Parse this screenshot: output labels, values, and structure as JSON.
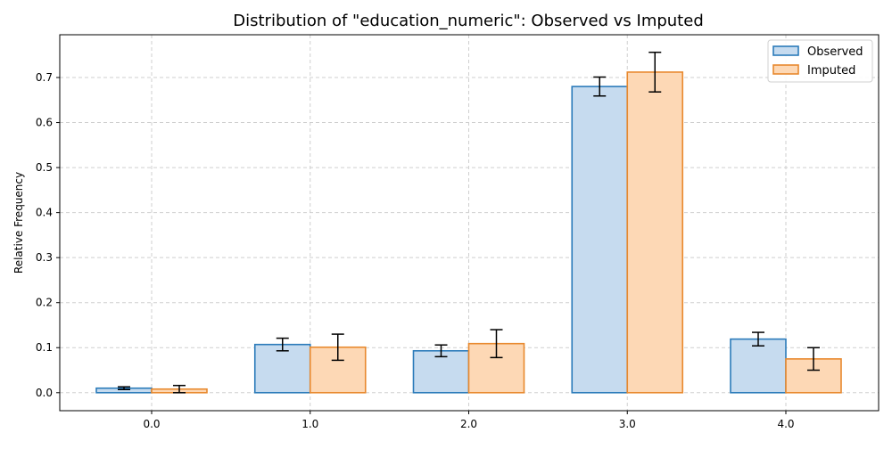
{
  "chart_data": {
    "type": "bar",
    "title": "Distribution of \"education_numeric\": Observed vs Imputed",
    "xlabel": "",
    "ylabel": "Relative Frequency",
    "categories": [
      "0.0",
      "1.0",
      "2.0",
      "3.0",
      "4.0"
    ],
    "series": [
      {
        "name": "Observed",
        "values": [
          0.01,
          0.107,
          0.093,
          0.68,
          0.119
        ],
        "error": [
          0.003,
          0.014,
          0.013,
          0.021,
          0.015
        ],
        "fill": "#c6dbef",
        "stroke": "#2b7bba"
      },
      {
        "name": "Imputed",
        "values": [
          0.008,
          0.101,
          0.109,
          0.712,
          0.075
        ],
        "error": [
          0.008,
          0.029,
          0.031,
          0.044,
          0.025
        ],
        "fill": "#fdd8b5",
        "stroke": "#e8892e"
      }
    ],
    "ylim": [
      -0.04,
      0.795
    ],
    "yticks": [
      "0.0",
      "0.1",
      "0.2",
      "0.3",
      "0.4",
      "0.5",
      "0.6",
      "0.7"
    ],
    "grid": true,
    "legend_position": "top-right"
  }
}
